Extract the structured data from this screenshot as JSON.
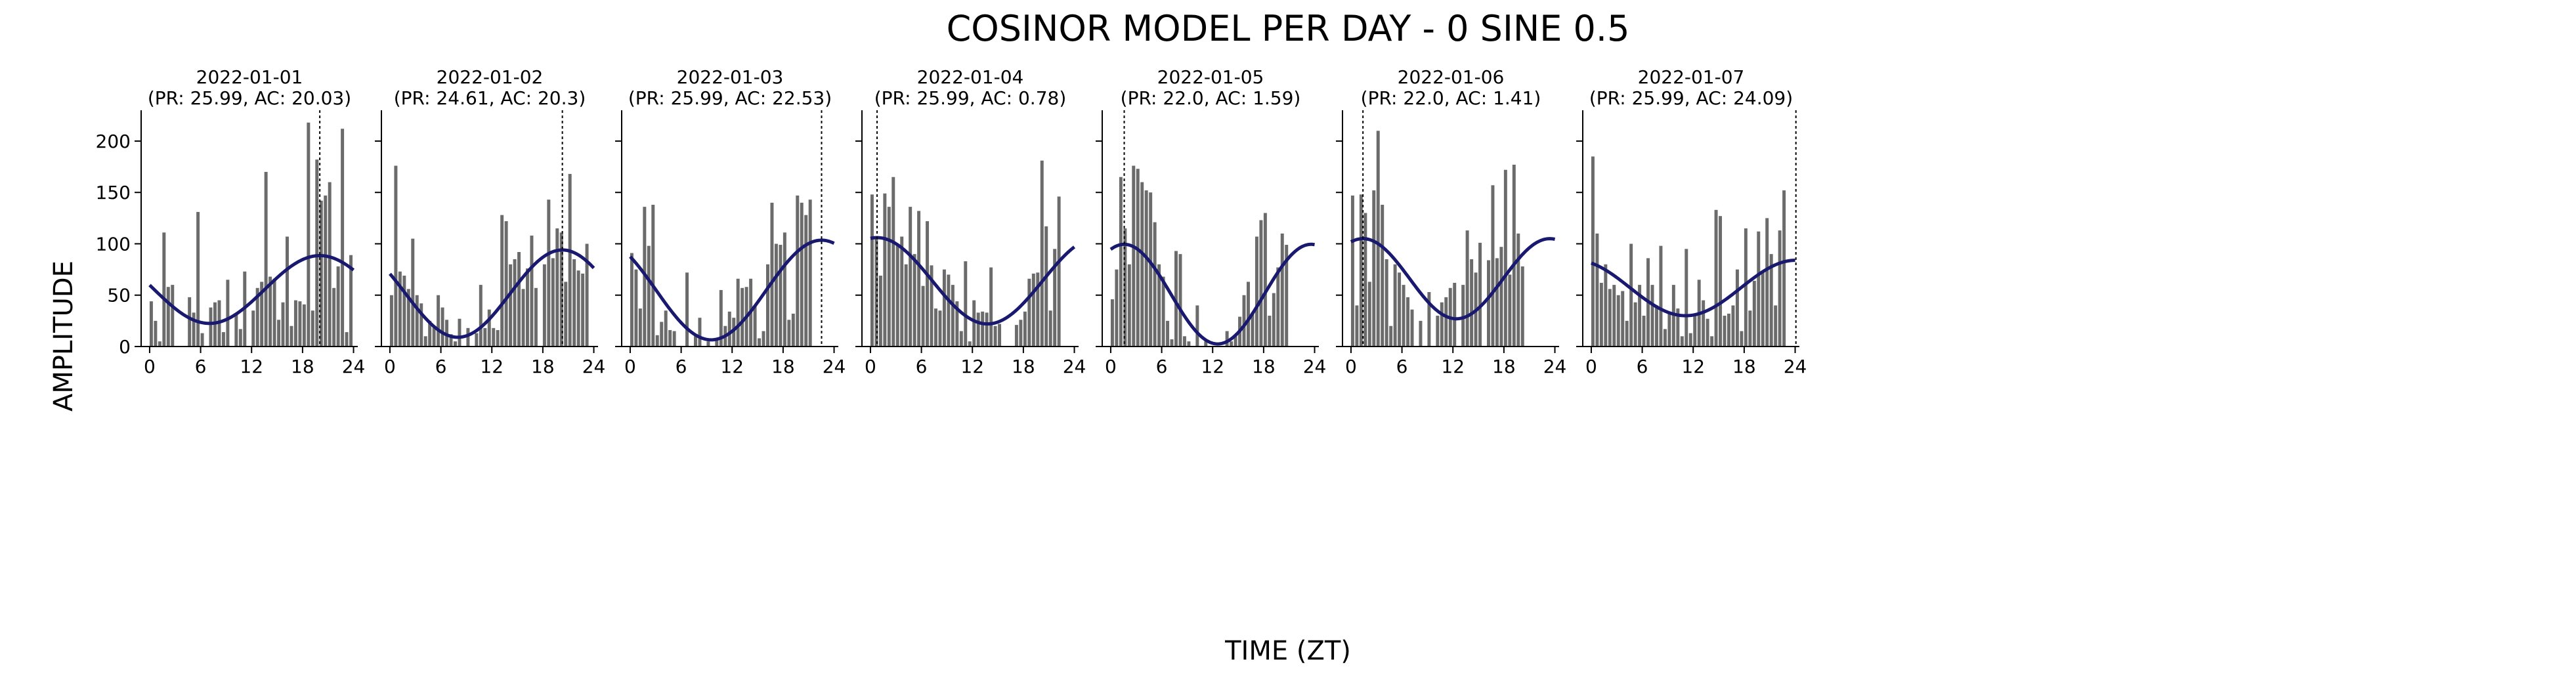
{
  "figure": {
    "title": "COSINOR MODEL PER DAY - 0 SINE 0.5",
    "xlabel": "TIME (ZT)",
    "ylabel": "AMPLITUDE"
  },
  "colors": {
    "bar": "#6b6b6b",
    "fit_line": "#191970",
    "vline": "#000000",
    "axis": "#000000"
  },
  "chart_data": [
    {
      "type": "bar",
      "title": "2022-01-01\n(PR: 25.99, AC: 20.03)",
      "xlim": [
        -1,
        24.5
      ],
      "ylim": [
        0,
        230
      ],
      "xticks": [
        0,
        6,
        12,
        18,
        24
      ],
      "yticks": [
        0,
        50,
        100,
        150,
        200
      ],
      "show_yticks": true,
      "bin_width": 0.5,
      "bars": [
        [
          0,
          44
        ],
        [
          0.5,
          25
        ],
        [
          1,
          5
        ],
        [
          1.5,
          111
        ],
        [
          2,
          58
        ],
        [
          2.5,
          60
        ],
        [
          4.5,
          48
        ],
        [
          5,
          33
        ],
        [
          5.5,
          131
        ],
        [
          6,
          13
        ],
        [
          7,
          38
        ],
        [
          7.5,
          43
        ],
        [
          8,
          45
        ],
        [
          8.5,
          14
        ],
        [
          9,
          65
        ],
        [
          10,
          31
        ],
        [
          10.5,
          17
        ],
        [
          11,
          73
        ],
        [
          12,
          35
        ],
        [
          12.5,
          57
        ],
        [
          13,
          63
        ],
        [
          13.5,
          170
        ],
        [
          14,
          68
        ],
        [
          14.5,
          66
        ],
        [
          15,
          26
        ],
        [
          15.5,
          43
        ],
        [
          16,
          107
        ],
        [
          16.5,
          20
        ],
        [
          17,
          45
        ],
        [
          17.5,
          44
        ],
        [
          18,
          41
        ],
        [
          18.5,
          218
        ],
        [
          19,
          35
        ],
        [
          19.5,
          182
        ],
        [
          20,
          142
        ],
        [
          20.5,
          147
        ],
        [
          21,
          160
        ],
        [
          21.5,
          57
        ],
        [
          22,
          78
        ],
        [
          22.5,
          212
        ],
        [
          23,
          14
        ],
        [
          23.5,
          89
        ]
      ],
      "fit": {
        "mesor": 55.5,
        "amplitude": 33,
        "acrophase": 20.03,
        "period": 25.99
      },
      "vline": 20.03
    },
    {
      "type": "bar",
      "title": "2022-01-02\n(PR: 24.61, AC: 20.3)",
      "xlim": [
        -1,
        24.5
      ],
      "ylim": [
        0,
        230
      ],
      "xticks": [
        0,
        6,
        12,
        18,
        24
      ],
      "yticks": [
        0,
        50,
        100,
        150,
        200
      ],
      "show_yticks": false,
      "bin_width": 0.5,
      "bars": [
        [
          0,
          50
        ],
        [
          0.5,
          176
        ],
        [
          1,
          73
        ],
        [
          1.5,
          69
        ],
        [
          2,
          56
        ],
        [
          2.5,
          105
        ],
        [
          3,
          50
        ],
        [
          3.5,
          42
        ],
        [
          4,
          10
        ],
        [
          4.5,
          25
        ],
        [
          5,
          19
        ],
        [
          5.5,
          50
        ],
        [
          6,
          38
        ],
        [
          6.5,
          26
        ],
        [
          7,
          12
        ],
        [
          7.5,
          5
        ],
        [
          8,
          27
        ],
        [
          9,
          18
        ],
        [
          10,
          13
        ],
        [
          10.5,
          60
        ],
        [
          11,
          18
        ],
        [
          11.5,
          36
        ],
        [
          12,
          18
        ],
        [
          12.5,
          16
        ],
        [
          13,
          128
        ],
        [
          13.5,
          122
        ],
        [
          14,
          80
        ],
        [
          14.5,
          85
        ],
        [
          15,
          92
        ],
        [
          15.5,
          56
        ],
        [
          16,
          76
        ],
        [
          16.5,
          108
        ],
        [
          17,
          57
        ],
        [
          18,
          80
        ],
        [
          18.5,
          143
        ],
        [
          19,
          86
        ],
        [
          19.5,
          115
        ],
        [
          20,
          111
        ],
        [
          20.5,
          63
        ],
        [
          21,
          168
        ],
        [
          21.5,
          85
        ],
        [
          22,
          74
        ],
        [
          22.5,
          71
        ],
        [
          23,
          100
        ]
      ],
      "fit": {
        "mesor": 51.5,
        "amplitude": 42.5,
        "acrophase": 20.3,
        "period": 24.61
      },
      "vline": 20.3
    },
    {
      "type": "bar",
      "title": "2022-01-03\n(PR: 25.99, AC: 22.53)",
      "xlim": [
        -1,
        24.5
      ],
      "ylim": [
        0,
        230
      ],
      "xticks": [
        0,
        6,
        12,
        18,
        24
      ],
      "yticks": [
        0,
        50,
        100,
        150,
        200
      ],
      "show_yticks": false,
      "bin_width": 0.5,
      "bars": [
        [
          0,
          91
        ],
        [
          0.5,
          75
        ],
        [
          1,
          37
        ],
        [
          1.5,
          136
        ],
        [
          2,
          98
        ],
        [
          2.5,
          138
        ],
        [
          3,
          11
        ],
        [
          3.5,
          24
        ],
        [
          4,
          35
        ],
        [
          4.5,
          16
        ],
        [
          5,
          15
        ],
        [
          6.5,
          72
        ],
        [
          7.5,
          10
        ],
        [
          8,
          28
        ],
        [
          9,
          5
        ],
        [
          10,
          6
        ],
        [
          10.5,
          55
        ],
        [
          11,
          20
        ],
        [
          11.5,
          34
        ],
        [
          12,
          28
        ],
        [
          12.5,
          66
        ],
        [
          13,
          57
        ],
        [
          13.5,
          58
        ],
        [
          14,
          66
        ],
        [
          14.5,
          40
        ],
        [
          15,
          8
        ],
        [
          15.5,
          15
        ],
        [
          16,
          80
        ],
        [
          16.5,
          140
        ],
        [
          17,
          100
        ],
        [
          17.5,
          99
        ],
        [
          18,
          111
        ],
        [
          18.5,
          26
        ],
        [
          19,
          32
        ],
        [
          19.5,
          147
        ],
        [
          20,
          140
        ],
        [
          20.5,
          128
        ],
        [
          21,
          143
        ]
      ],
      "fit": {
        "mesor": 55,
        "amplitude": 48.5,
        "acrophase": 22.53,
        "period": 25.99
      },
      "vline": 22.53
    },
    {
      "type": "bar",
      "title": "2022-01-04\n(PR: 25.99, AC: 0.78)",
      "xlim": [
        -1,
        24.5
      ],
      "ylim": [
        0,
        230
      ],
      "xticks": [
        0,
        6,
        12,
        18,
        24
      ],
      "yticks": [
        0,
        50,
        100,
        150,
        200
      ],
      "show_yticks": false,
      "bin_width": 0.5,
      "bars": [
        [
          0,
          148
        ],
        [
          0.5,
          106
        ],
        [
          1,
          69
        ],
        [
          1.5,
          149
        ],
        [
          2,
          136
        ],
        [
          2.5,
          165
        ],
        [
          3,
          99
        ],
        [
          3.5,
          107
        ],
        [
          4,
          80
        ],
        [
          4.5,
          136
        ],
        [
          5,
          90
        ],
        [
          5.5,
          132
        ],
        [
          6,
          59
        ],
        [
          6.5,
          122
        ],
        [
          7,
          79
        ],
        [
          7.5,
          37
        ],
        [
          8,
          35
        ],
        [
          8.5,
          75
        ],
        [
          9,
          70
        ],
        [
          9.5,
          60
        ],
        [
          10,
          44
        ],
        [
          10.5,
          15
        ],
        [
          11,
          83
        ],
        [
          11.5,
          5
        ],
        [
          12,
          45
        ],
        [
          12.5,
          33
        ],
        [
          13,
          34
        ],
        [
          13.5,
          33
        ],
        [
          14,
          77
        ],
        [
          14.5,
          20
        ],
        [
          15,
          22
        ],
        [
          17,
          21
        ],
        [
          17.5,
          26
        ],
        [
          18,
          34
        ],
        [
          18.5,
          66
        ],
        [
          19,
          71
        ],
        [
          19.5,
          72
        ],
        [
          20,
          181
        ],
        [
          20.5,
          117
        ],
        [
          21,
          35
        ],
        [
          21.5,
          95
        ],
        [
          22,
          146
        ]
      ],
      "fit": {
        "mesor": 64,
        "amplitude": 42,
        "acrophase": 0.78,
        "period": 25.99
      },
      "vline": 0.78
    },
    {
      "type": "bar",
      "title": "2022-01-05\n(PR: 22.0, AC: 1.59)",
      "xlim": [
        -1,
        24.5
      ],
      "ylim": [
        0,
        230
      ],
      "xticks": [
        0,
        6,
        12,
        18,
        24
      ],
      "yticks": [
        0,
        50,
        100,
        150,
        200
      ],
      "show_yticks": false,
      "bin_width": 0.5,
      "bars": [
        [
          0,
          46
        ],
        [
          0.5,
          75
        ],
        [
          1,
          165
        ],
        [
          1.5,
          115
        ],
        [
          2,
          80
        ],
        [
          2.5,
          176
        ],
        [
          3,
          173
        ],
        [
          3.5,
          160
        ],
        [
          4,
          152
        ],
        [
          4.5,
          150
        ],
        [
          5,
          121
        ],
        [
          5.5,
          80
        ],
        [
          6,
          68
        ],
        [
          6.5,
          25
        ],
        [
          7,
          7
        ],
        [
          7.5,
          93
        ],
        [
          8,
          90
        ],
        [
          8.5,
          10
        ],
        [
          9,
          5
        ],
        [
          10,
          40
        ],
        [
          11,
          5
        ],
        [
          13.5,
          15
        ],
        [
          14,
          5
        ],
        [
          14.5,
          10
        ],
        [
          15,
          29
        ],
        [
          15.5,
          50
        ],
        [
          16,
          63
        ],
        [
          16.5,
          33
        ],
        [
          17,
          107
        ],
        [
          17.5,
          123
        ],
        [
          18,
          130
        ],
        [
          18.5,
          30
        ],
        [
          19,
          52
        ],
        [
          19.5,
          77
        ],
        [
          20,
          110
        ],
        [
          20.5,
          99
        ]
      ],
      "fit": {
        "mesor": 51,
        "amplitude": 48.5,
        "acrophase": 1.59,
        "period": 22.0
      },
      "vline": 1.59
    },
    {
      "type": "bar",
      "title": "2022-01-06\n(PR: 22.0, AC: 1.41)",
      "xlim": [
        -1,
        24.5
      ],
      "ylim": [
        0,
        230
      ],
      "xticks": [
        0,
        6,
        12,
        18,
        24
      ],
      "yticks": [
        0,
        50,
        100,
        150,
        200
      ],
      "show_yticks": false,
      "bin_width": 0.5,
      "bars": [
        [
          0,
          147
        ],
        [
          0.5,
          40
        ],
        [
          1,
          148
        ],
        [
          1.5,
          130
        ],
        [
          2,
          63
        ],
        [
          2.5,
          152
        ],
        [
          3,
          210
        ],
        [
          3.5,
          138
        ],
        [
          4,
          85
        ],
        [
          4.5,
          20
        ],
        [
          5,
          80
        ],
        [
          5.5,
          72
        ],
        [
          6,
          60
        ],
        [
          6.5,
          48
        ],
        [
          7,
          36
        ],
        [
          8,
          25
        ],
        [
          9,
          53
        ],
        [
          10,
          30
        ],
        [
          10.5,
          43
        ],
        [
          11,
          48
        ],
        [
          11.5,
          57
        ],
        [
          12,
          62
        ],
        [
          13,
          60
        ],
        [
          13.5,
          113
        ],
        [
          14,
          85
        ],
        [
          14.5,
          72
        ],
        [
          15,
          101
        ],
        [
          16,
          84
        ],
        [
          16.5,
          157
        ],
        [
          17,
          86
        ],
        [
          17.5,
          97
        ],
        [
          18,
          172
        ],
        [
          18.5,
          70
        ],
        [
          19,
          177
        ],
        [
          19.5,
          110
        ],
        [
          20,
          78
        ]
      ],
      "fit": {
        "mesor": 66,
        "amplitude": 39,
        "acrophase": 1.41,
        "period": 22.0
      },
      "vline": 1.41
    },
    {
      "type": "bar",
      "title": "2022-01-07\n(PR: 25.99, AC: 24.09)",
      "xlim": [
        -1,
        24.5
      ],
      "ylim": [
        0,
        230
      ],
      "xticks": [
        0,
        6,
        12,
        18,
        24
      ],
      "yticks": [
        0,
        50,
        100,
        150,
        200
      ],
      "show_yticks": false,
      "bin_width": 0.5,
      "bars": [
        [
          0,
          185
        ],
        [
          0.5,
          110
        ],
        [
          1,
          62
        ],
        [
          1.5,
          80
        ],
        [
          2,
          56
        ],
        [
          2.5,
          60
        ],
        [
          3,
          50
        ],
        [
          3.5,
          54
        ],
        [
          4,
          25
        ],
        [
          4.5,
          100
        ],
        [
          5,
          43
        ],
        [
          5.5,
          60
        ],
        [
          6,
          30
        ],
        [
          6.5,
          86
        ],
        [
          7,
          60
        ],
        [
          7.5,
          40
        ],
        [
          8,
          98
        ],
        [
          8.5,
          17
        ],
        [
          9,
          33
        ],
        [
          9.5,
          60
        ],
        [
          10,
          37
        ],
        [
          10.5,
          10
        ],
        [
          11,
          95
        ],
        [
          11.5,
          13
        ],
        [
          12,
          30
        ],
        [
          12.5,
          65
        ],
        [
          13,
          45
        ],
        [
          13.5,
          27
        ],
        [
          14,
          10
        ],
        [
          14.5,
          133
        ],
        [
          15,
          127
        ],
        [
          15.5,
          30
        ],
        [
          16,
          32
        ],
        [
          16.5,
          40
        ],
        [
          17,
          75
        ],
        [
          17.5,
          15
        ],
        [
          18,
          115
        ],
        [
          18.5,
          35
        ],
        [
          19,
          64
        ],
        [
          19.5,
          112
        ],
        [
          20,
          72
        ],
        [
          20.5,
          125
        ],
        [
          21,
          90
        ],
        [
          21.5,
          40
        ],
        [
          22,
          113
        ],
        [
          22.5,
          152
        ]
      ],
      "fit": {
        "mesor": 57,
        "amplitude": 27,
        "acrophase": 24.09,
        "period": 25.99
      },
      "vline": 24.09
    }
  ]
}
